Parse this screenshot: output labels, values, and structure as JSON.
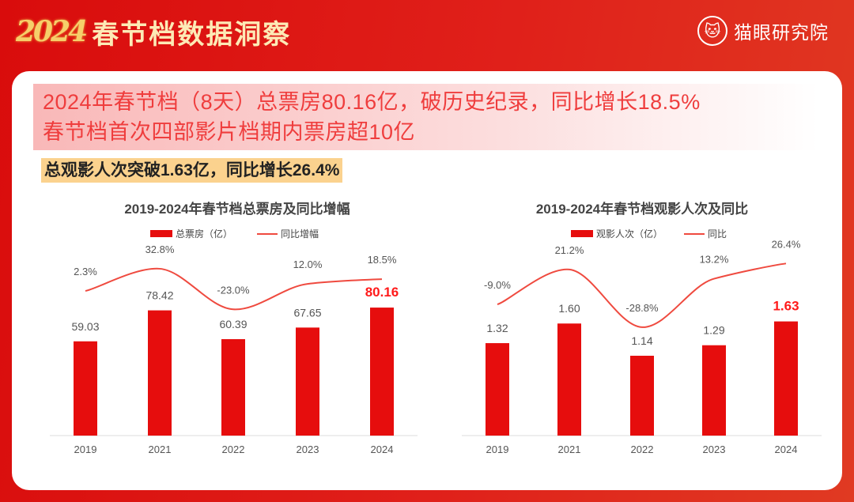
{
  "header": {
    "year": "2024",
    "title": "春节档数据洞察",
    "brand": "猫眼研究院",
    "brand_icon": "cat-face-icon"
  },
  "headline": {
    "line1": "2024年春节档（8天）总票房80.16亿，破历史纪录，同比增长18.5%",
    "line2": "春节档首次四部影片档期内票房超10亿"
  },
  "highlight": "总观影人次突破1.63亿，同比增长26.4%",
  "colors": {
    "bar": "#e60d0d",
    "line": "#ef4a3f",
    "highlight_label": "#ff1a1a",
    "label": "#555555"
  },
  "chart_data": [
    {
      "type": "bar+line",
      "title": "2019-2024年春节档总票房及同比增幅",
      "categories": [
        "2019",
        "2021",
        "2022",
        "2023",
        "2024"
      ],
      "series": [
        {
          "name": "总票房（亿）",
          "type": "bar",
          "values": [
            59.03,
            78.42,
            60.39,
            67.65,
            80.16
          ],
          "labels": [
            "59.03",
            "78.42",
            "60.39",
            "67.65",
            "80.16"
          ]
        },
        {
          "name": "同比增幅",
          "type": "line",
          "values": [
            2.3,
            32.8,
            -23.0,
            12.0,
            18.5
          ],
          "labels": [
            "2.3%",
            "32.8%",
            "-23.0%",
            "12.0%",
            "18.5%"
          ]
        }
      ],
      "legend": "top-center",
      "grid": false
    },
    {
      "type": "bar+line",
      "title": "2019-2024年春节档观影人次及同比",
      "categories": [
        "2019",
        "2021",
        "2022",
        "2023",
        "2024"
      ],
      "series": [
        {
          "name": "观影人次（亿）",
          "type": "bar",
          "values": [
            1.32,
            1.6,
            1.14,
            1.29,
            1.63
          ],
          "labels": [
            "1.32",
            "1.60",
            "1.14",
            "1.29",
            "1.63"
          ]
        },
        {
          "name": "同比",
          "type": "line",
          "values": [
            -9.0,
            21.2,
            -28.8,
            13.2,
            26.4
          ],
          "labels": [
            "-9.0%",
            "21.2%",
            "-28.8%",
            "13.2%",
            "26.4%"
          ]
        }
      ],
      "legend": "top-center",
      "grid": false
    }
  ]
}
